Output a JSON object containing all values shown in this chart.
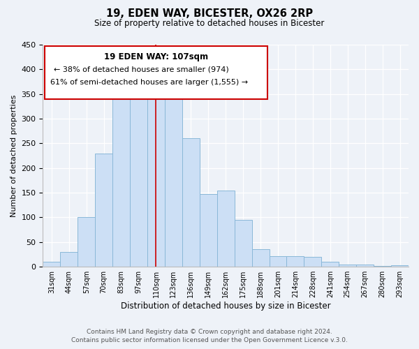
{
  "title": "19, EDEN WAY, BICESTER, OX26 2RP",
  "subtitle": "Size of property relative to detached houses in Bicester",
  "xlabel": "Distribution of detached houses by size in Bicester",
  "ylabel": "Number of detached properties",
  "categories": [
    "31sqm",
    "44sqm",
    "57sqm",
    "70sqm",
    "83sqm",
    "97sqm",
    "110sqm",
    "123sqm",
    "136sqm",
    "149sqm",
    "162sqm",
    "175sqm",
    "188sqm",
    "201sqm",
    "214sqm",
    "228sqm",
    "241sqm",
    "254sqm",
    "267sqm",
    "280sqm",
    "293sqm"
  ],
  "values": [
    10,
    30,
    100,
    230,
    365,
    370,
    375,
    355,
    260,
    148,
    155,
    95,
    35,
    22,
    22,
    20,
    10,
    5,
    4,
    2,
    3
  ],
  "bar_color": "#ccdff5",
  "bar_edge_color": "#8ab8d8",
  "highlight_index": 6,
  "vline_color": "#cc0000",
  "ylim": [
    0,
    450
  ],
  "annotation_title": "19 EDEN WAY: 107sqm",
  "annotation_line1": "← 38% of detached houses are smaller (974)",
  "annotation_line2": "61% of semi-detached houses are larger (1,555) →",
  "annotation_box_color": "#ffffff",
  "annotation_box_edge": "#cc0000",
  "footnote1": "Contains HM Land Registry data © Crown copyright and database right 2024.",
  "footnote2": "Contains public sector information licensed under the Open Government Licence v.3.0.",
  "background_color": "#eef2f8"
}
